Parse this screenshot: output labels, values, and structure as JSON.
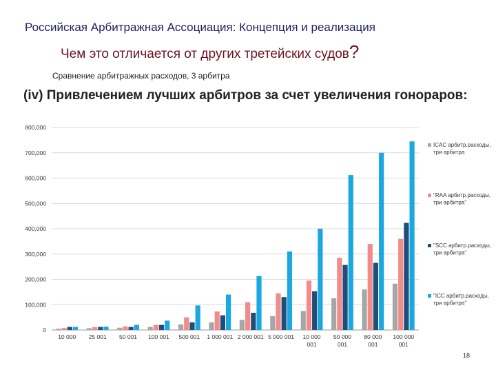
{
  "slide": {
    "header": "Российская Арбитражная Ассоциация: Концепция и реализация",
    "subtitle": "Чем это отличается от других третейских судов",
    "subtitle_mark": "?",
    "caption": "Сравнение арбитражных расходов, 3 арбитра",
    "heading": "(iv) Привлечением лучших арбитров за счет увеличения гонораров:",
    "page_number": "18"
  },
  "chart_data": {
    "type": "bar",
    "categories": [
      [
        "10 000"
      ],
      [
        "25 001"
      ],
      [
        "50 001"
      ],
      [
        "100 001"
      ],
      [
        "500 001"
      ],
      [
        "1 000 001"
      ],
      [
        "2 000 001"
      ],
      [
        "5 000 001"
      ],
      [
        "10 000",
        "001"
      ],
      [
        "50 000",
        "001"
      ],
      [
        "80 000",
        "001"
      ],
      [
        "100 000",
        "001"
      ]
    ],
    "series": [
      {
        "name": "ICAC арбитр.расходы, три арбитра",
        "color": "#a6a6a6",
        "values": [
          5000,
          7000,
          9000,
          12000,
          22000,
          30000,
          40000,
          55000,
          75000,
          125000,
          160000,
          183000
        ]
      },
      {
        "name": "\"RAA арбитр.расходы, три арбитра\"",
        "color": "#f28b8b",
        "values": [
          8000,
          11000,
          14000,
          20000,
          50000,
          73000,
          110000,
          145000,
          195000,
          285000,
          340000,
          360000
        ]
      },
      {
        "name": "\"SCC арбитр.расходы, три арбитра\"",
        "color": "#1f4e79",
        "values": [
          12000,
          12000,
          12000,
          20000,
          30000,
          58000,
          68000,
          130000,
          153000,
          257000,
          265000,
          423000
        ]
      },
      {
        "name": "\"ICC арбитр.расходы, три арбитра\"",
        "color": "#19a8e0",
        "values": [
          12000,
          13000,
          20000,
          37000,
          97000,
          140000,
          213000,
          310000,
          400000,
          612000,
          700000,
          745000
        ]
      }
    ],
    "yticks": [
      "0",
      "100,000",
      "200,000",
      "300,000",
      "400,000",
      "500,000",
      "600,000",
      "700,000",
      "800,000"
    ],
    "ylim": [
      0,
      800000
    ],
    "grid": true,
    "legend_position": "right"
  }
}
